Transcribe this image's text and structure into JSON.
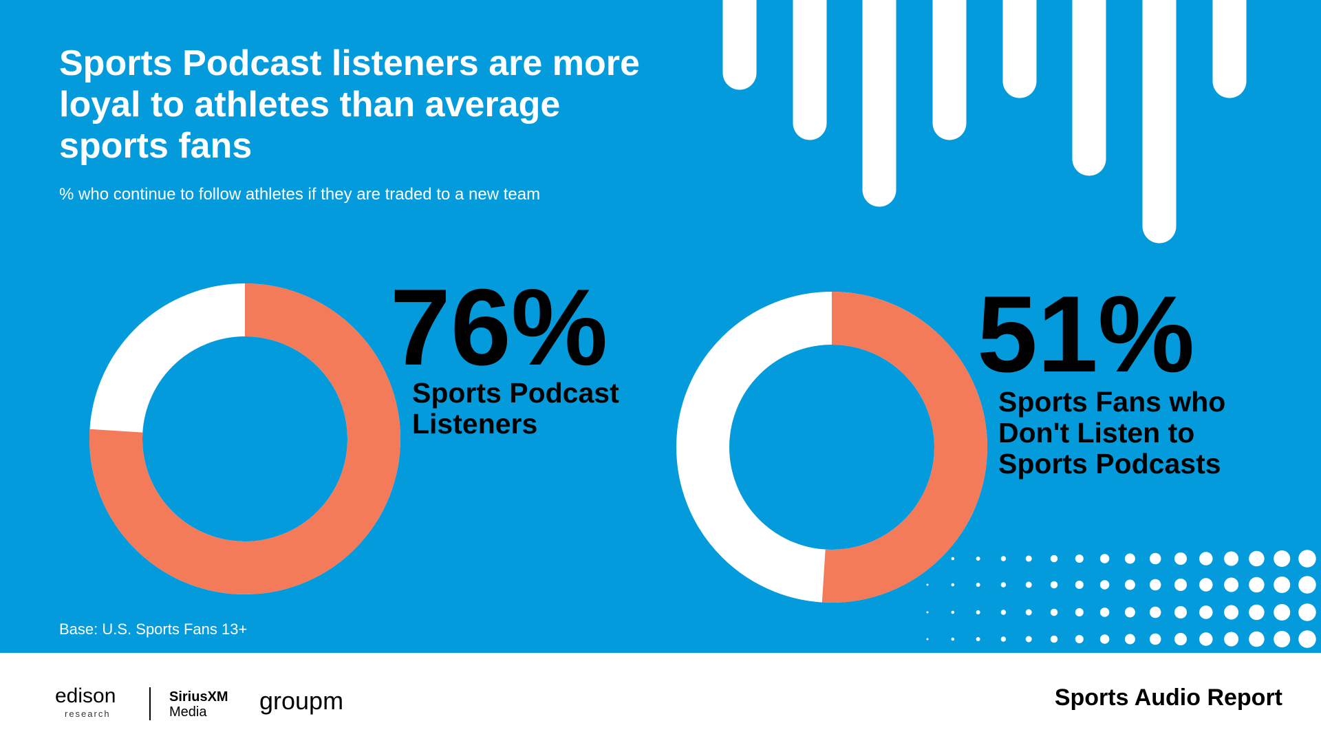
{
  "title": "Sports Podcast listeners are more loyal to athletes than average sports fans",
  "subtitle": "% who continue to follow athletes if they are traded to a new team",
  "note": "Base: U.S. Sports Fans 13+",
  "footer": {
    "report": "Sports Audio Report",
    "logos": [
      "edison",
      "research",
      "SiriusXM",
      "Media",
      "groupm"
    ]
  },
  "chart_data": [
    {
      "type": "donut",
      "categories": [
        "Sports Podcast Listeners"
      ],
      "values": [
        76
      ],
      "value_labels": [
        "76%"
      ],
      "color": "#f47b5a",
      "track_color": "#ffffff",
      "ylim": [
        0,
        100
      ]
    },
    {
      "type": "donut",
      "categories": [
        "Sports Fans who Don't Listen to Sports Podcasts"
      ],
      "values": [
        51
      ],
      "value_labels": [
        "51%"
      ],
      "color": "#f47b5a",
      "track_color": "#ffffff",
      "ylim": [
        0,
        100
      ]
    }
  ]
}
